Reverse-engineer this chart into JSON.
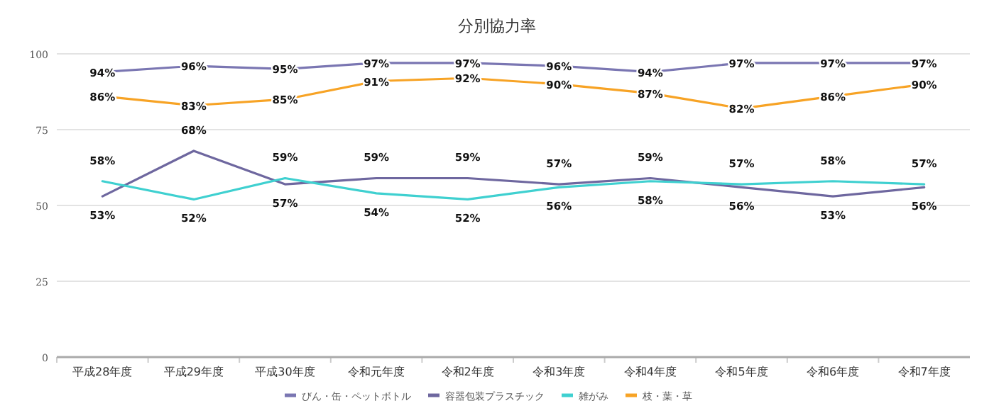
{
  "chart_data": {
    "type": "line",
    "title": "分別協力率",
    "categories": [
      "平成28年度",
      "平成29年度",
      "平成30年度",
      "令和元年度",
      "令和2年度",
      "令和3年度",
      "令和4年度",
      "令和5年度",
      "令和6年度",
      "令和7年度"
    ],
    "series": [
      {
        "name": "びん・缶・ペットボトル",
        "color": "#7a76b2",
        "values": [
          94,
          96,
          95,
          97,
          97,
          96,
          94,
          97,
          97,
          97
        ],
        "value_labels": [
          "94%",
          "96%",
          "95%",
          "97%",
          "97%",
          "96%",
          "94%",
          "97%",
          "97%",
          "97%"
        ]
      },
      {
        "name": "容器包装プラスチック",
        "color": "#6e679f",
        "values": [
          53,
          68,
          57,
          59,
          59,
          57,
          59,
          56,
          53,
          56
        ],
        "value_labels": [
          "53%",
          "68%",
          "57%",
          "59%",
          "59%",
          "57%",
          "59%",
          "56%",
          "53%",
          "56%"
        ]
      },
      {
        "name": "雑がみ",
        "color": "#3fd0d0",
        "values": [
          58,
          52,
          59,
          54,
          52,
          56,
          58,
          57,
          58,
          57
        ],
        "value_labels": [
          "58%",
          "52%",
          "59%",
          "54%",
          "52%",
          "56%",
          "58%",
          "57%",
          "58%",
          "57%"
        ]
      },
      {
        "name": "枝・葉・草",
        "color": "#f7a325",
        "values": [
          86,
          83,
          85,
          91,
          92,
          90,
          87,
          82,
          86,
          90
        ],
        "value_labels": [
          "86%",
          "83%",
          "85%",
          "91%",
          "92%",
          "90%",
          "87%",
          "82%",
          "86%",
          "90%"
        ]
      }
    ],
    "ylim": [
      0,
      100
    ],
    "yticks": [
      0,
      25,
      50,
      75,
      100
    ],
    "grid": "y",
    "legend": "bottom",
    "marker": "none",
    "line_style": "solid"
  }
}
